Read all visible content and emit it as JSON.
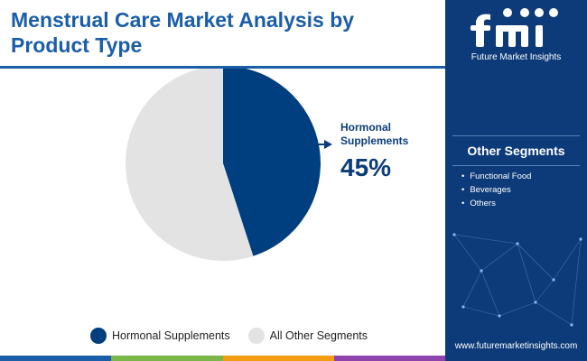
{
  "title": "Menstrual Care Market Analysis by Product Type",
  "chart_data": {
    "type": "pie",
    "slices": [
      {
        "name": "Hormonal Supplements",
        "value": 45,
        "color": "#003f7f"
      },
      {
        "name": "All Other Segments",
        "value": 55,
        "color": "#e3e3e3"
      }
    ]
  },
  "callout": {
    "label": "Hormonal Supplements",
    "value": "45%"
  },
  "legend": [
    {
      "label": "Hormonal Supplements",
      "color": "#003f7f"
    },
    {
      "label": "All Other Segments",
      "color": "#e3e3e3"
    }
  ],
  "sidebar": {
    "brand_text": "Future Market Insights",
    "other_segments_title": "Other Segments",
    "other_segments": [
      "Functional Food",
      "Beverages",
      "Others"
    ],
    "website": "www.futuremarketinsights.com"
  },
  "colors": {
    "accent": "#1a5ea8",
    "sidebar": "#0d3b79",
    "bottom_bar": [
      "#1a5ea8",
      "#7ab648",
      "#f39c12",
      "#8e44ad"
    ]
  }
}
